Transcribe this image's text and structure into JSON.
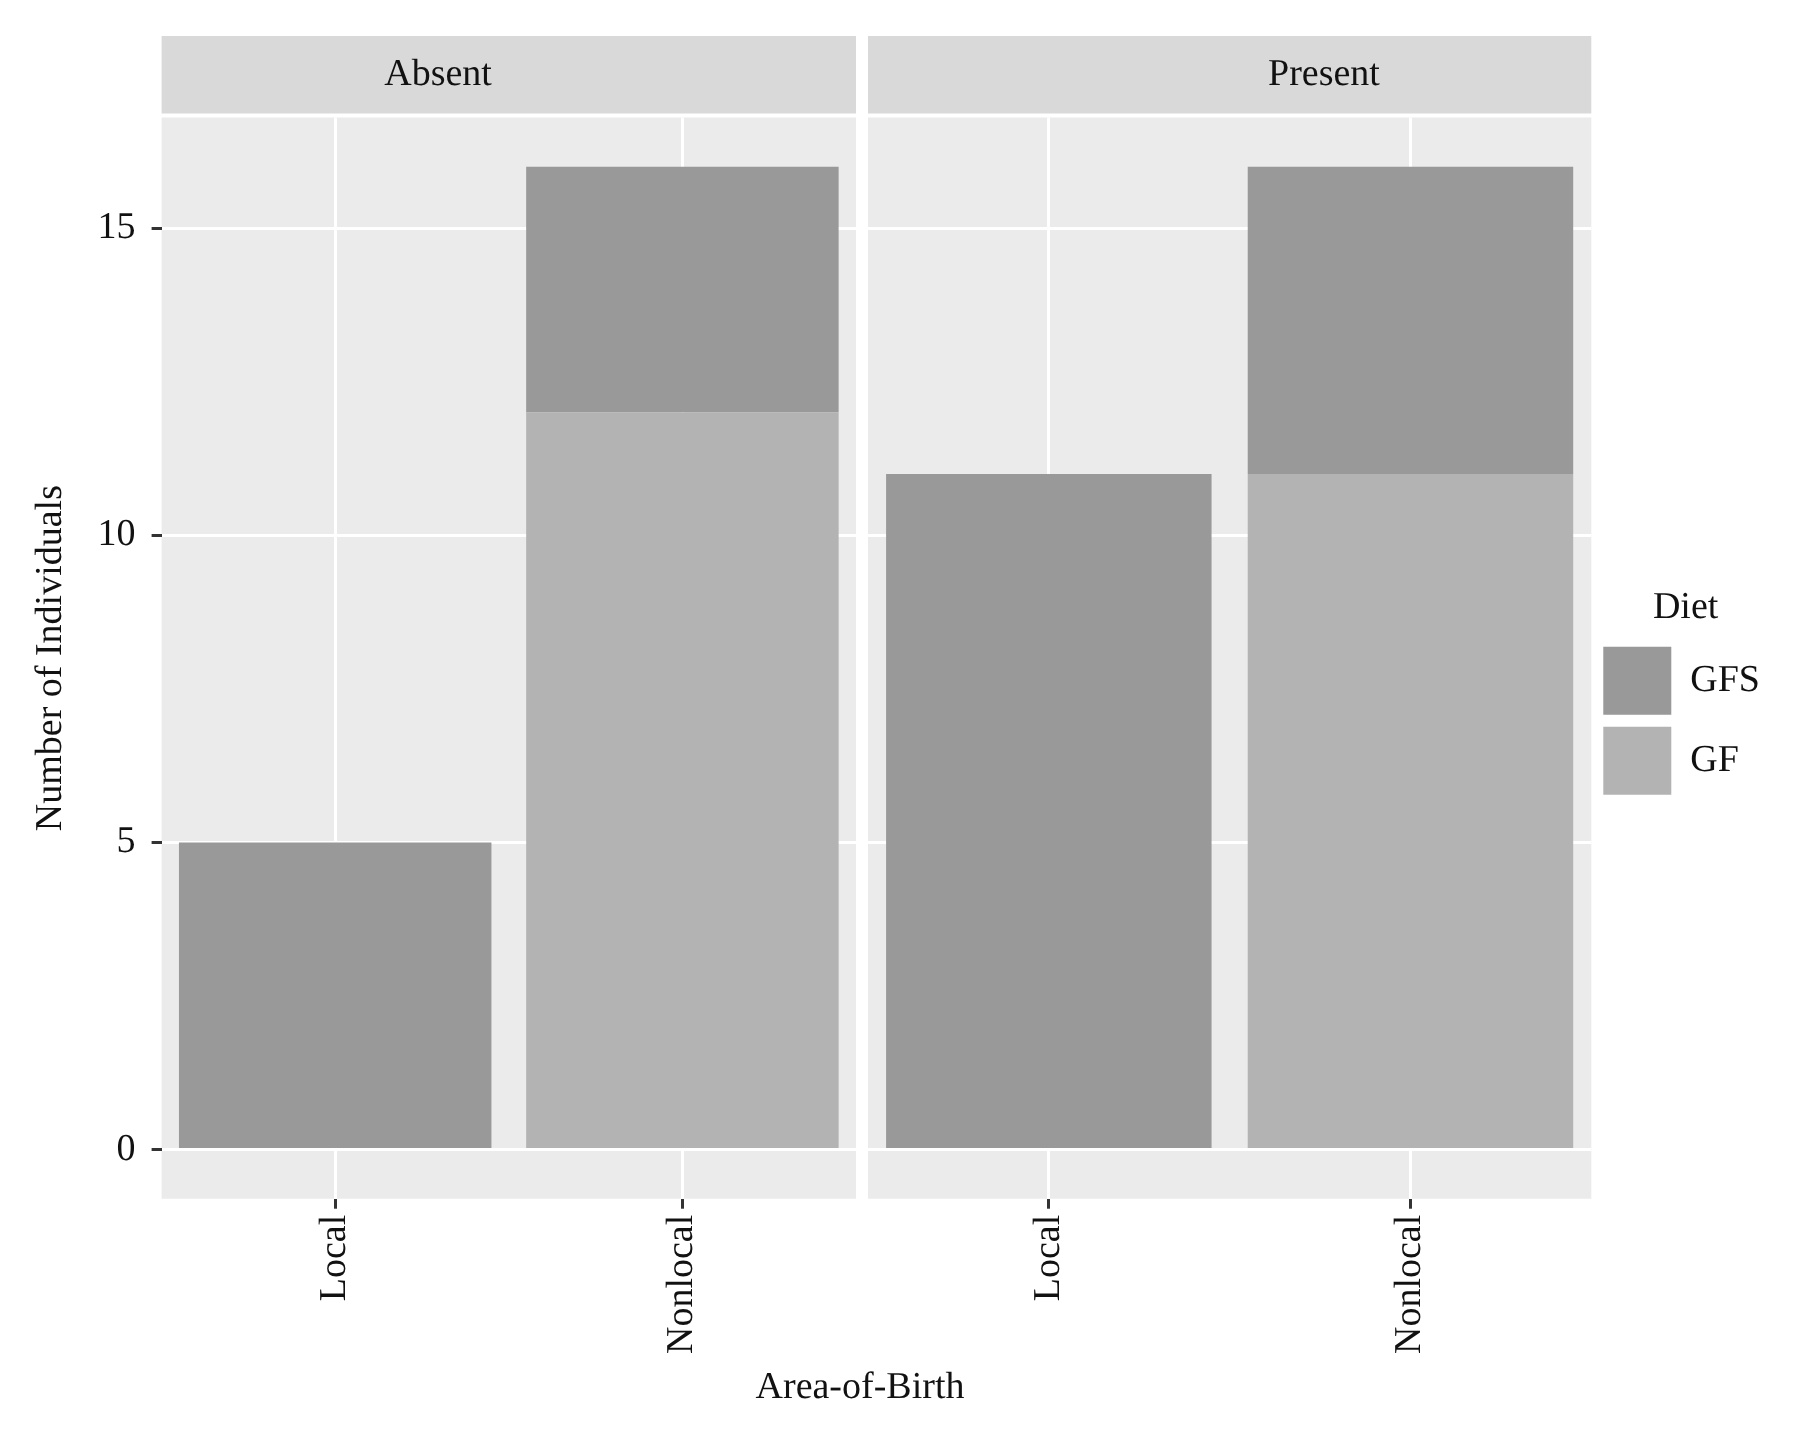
{
  "chart_data": [
    {
      "type": "bar",
      "title": "Absent",
      "xlabel": "Area-of-Birth",
      "ylabel": "Number of Individuals",
      "categories": [
        "Local",
        "Nonlocal"
      ],
      "stacked": true,
      "series": [
        {
          "color": "#b3b3b3",
          "values": [
            0,
            12
          ]
        },
        {
          "color": "#999999",
          "values": [
            5,
            4
          ]
        }
      ],
      "ylim": [
        -0.8,
        16.8
      ],
      "yticks": [
        0,
        5,
        10,
        15
      ],
      "grid": true,
      "legend": false
    },
    {
      "type": "bar",
      "title": "Present",
      "legend_title": "Diet",
      "categories": [
        "Local",
        "Nonlocal"
      ],
      "stacked": true,
      "series": [
        {
          "name": "GF",
          "color": "#b3b3b3",
          "values": [
            0,
            11
          ]
        },
        {
          "name": "GFS",
          "color": "#999999",
          "values": [
            11,
            5
          ]
        }
      ],
      "ylim": [
        -0.8,
        16.8
      ],
      "yticks": [
        0,
        5,
        10,
        15
      ],
      "grid": true,
      "legend": "right",
      "tick_labels": "x"
    }
  ]
}
